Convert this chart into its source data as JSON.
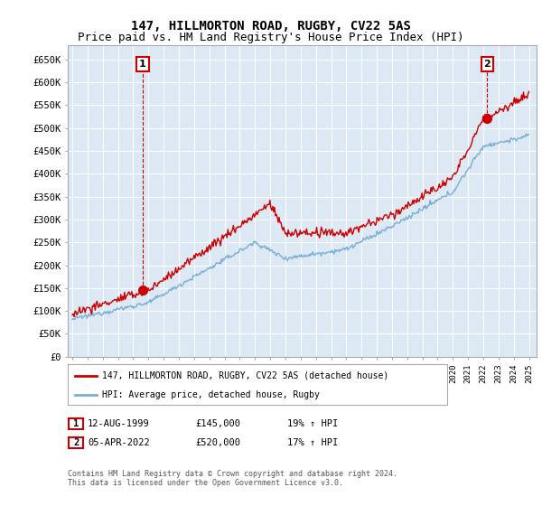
{
  "title": "147, HILLMORTON ROAD, RUGBY, CV22 5AS",
  "subtitle": "Price paid vs. HM Land Registry's House Price Index (HPI)",
  "ylabel_ticks": [
    "£0",
    "£50K",
    "£100K",
    "£150K",
    "£200K",
    "£250K",
    "£300K",
    "£350K",
    "£400K",
    "£450K",
    "£500K",
    "£550K",
    "£600K",
    "£650K"
  ],
  "ytick_values": [
    0,
    50000,
    100000,
    150000,
    200000,
    250000,
    300000,
    350000,
    400000,
    450000,
    500000,
    550000,
    600000,
    650000
  ],
  "ylim": [
    0,
    680000
  ],
  "xlim_start": 1994.7,
  "xlim_end": 2025.5,
  "background_color": "#ffffff",
  "chart_bg_color": "#dce9f5",
  "grid_color": "#ffffff",
  "red_line_color": "#cc0000",
  "blue_line_color": "#7aaed4",
  "sale1_x": 1999.617,
  "sale1_y": 145000,
  "sale2_x": 2022.253,
  "sale2_y": 520000,
  "legend_label_red": "147, HILLMORTON ROAD, RUGBY, CV22 5AS (detached house)",
  "legend_label_blue": "HPI: Average price, detached house, Rugby",
  "footer": "Contains HM Land Registry data © Crown copyright and database right 2024.\nThis data is licensed under the Open Government Licence v3.0.",
  "title_fontsize": 10,
  "subtitle_fontsize": 9
}
